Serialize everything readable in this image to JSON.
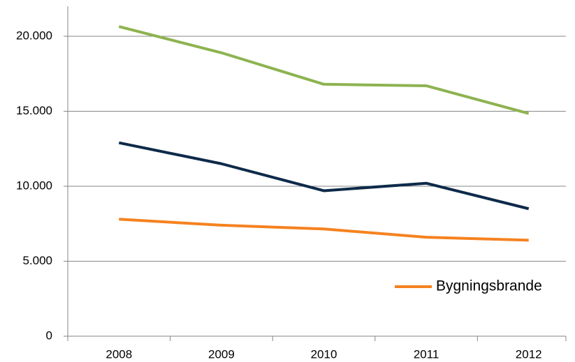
{
  "chart_data": {
    "type": "line",
    "categories": [
      "2008",
      "2009",
      "2010",
      "2011",
      "2012"
    ],
    "series": [
      {
        "color": "#8db350",
        "values": [
          20650,
          18900,
          16800,
          16700,
          14850
        ]
      },
      {
        "color": "#0e2a4a",
        "values": [
          12900,
          11500,
          9700,
          10200,
          8500
        ]
      },
      {
        "name": "Bygningsbrande",
        "color": "#f58220",
        "values": [
          7800,
          7400,
          7150,
          6600,
          6400
        ]
      }
    ],
    "ylim": [
      0,
      22000
    ],
    "yticks": [
      0,
      {
        "value": 5000,
        "label": "5.000"
      },
      {
        "value": 10000,
        "label": "10.000"
      },
      {
        "value": 15000,
        "label": "15.000"
      },
      {
        "value": 20000,
        "label": "20.000"
      }
    ],
    "grid": true,
    "legend": "right"
  }
}
